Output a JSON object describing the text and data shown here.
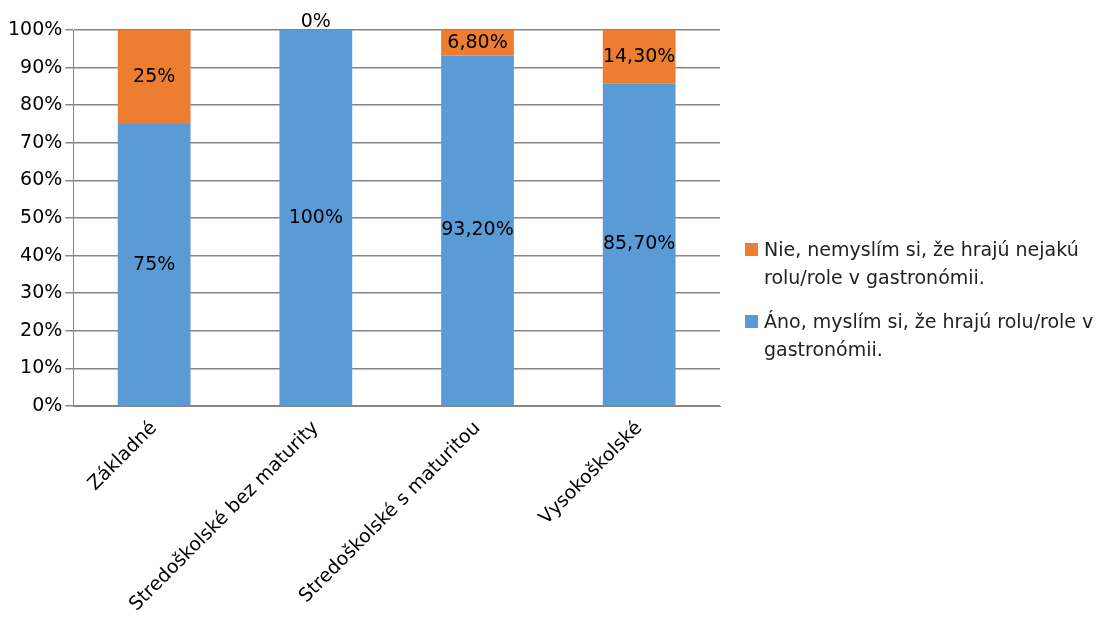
{
  "chart_data": {
    "type": "bar",
    "stacked": true,
    "categories": [
      "Základné",
      "Stredoškolské bez maturity",
      "Stredoškolské s maturitou",
      "Vysokoškolské"
    ],
    "series": [
      {
        "name": "Áno, myslím si, že hrajú rolu/role v gastronómii.",
        "color": "#5b9bd5",
        "values": [
          75,
          100,
          93.2,
          85.7
        ],
        "value_labels": [
          "75%",
          "100%",
          "93,20%",
          "85,70%"
        ]
      },
      {
        "name": "Nie, nemyslím si, že hrajú nejakú rolu/role v gastronómii.",
        "color": "#ed7d31",
        "values": [
          25,
          0,
          6.8,
          14.3
        ],
        "value_labels": [
          "25%",
          "0%",
          "6,80%",
          "14,30%"
        ]
      }
    ],
    "ylim": [
      0,
      100
    ],
    "yticks": [
      {
        "value": 0,
        "label": "0%"
      },
      {
        "value": 10,
        "label": "10%"
      },
      {
        "value": 20,
        "label": "20%"
      },
      {
        "value": 30,
        "label": "30%"
      },
      {
        "value": 40,
        "label": "40%"
      },
      {
        "value": 50,
        "label": "50%"
      },
      {
        "value": 60,
        "label": "60%"
      },
      {
        "value": 70,
        "label": "70%"
      },
      {
        "value": 80,
        "label": "80%"
      },
      {
        "value": 90,
        "label": "90%"
      },
      {
        "value": 100,
        "label": "100%"
      }
    ],
    "grid": "y",
    "legend": "right"
  }
}
